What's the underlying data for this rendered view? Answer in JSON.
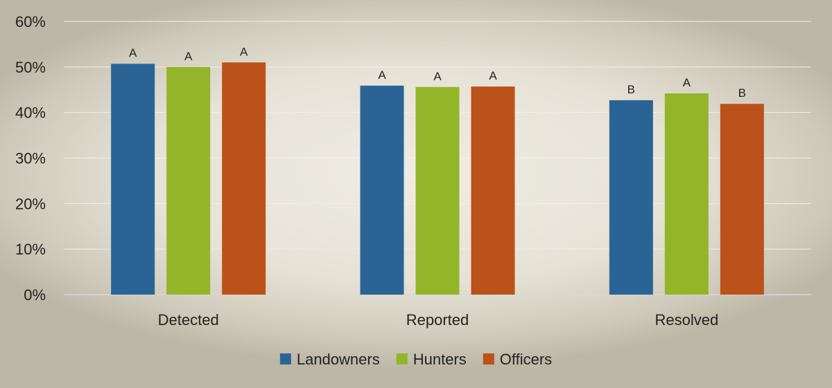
{
  "chart_data": {
    "type": "bar",
    "categories": [
      "Detected",
      "Reported",
      "Resolved"
    ],
    "series": [
      {
        "name": "Landowners",
        "color": "#2a6496",
        "values": [
          50.7,
          45.9,
          42.7
        ],
        "labels": [
          "A",
          "A",
          "B"
        ]
      },
      {
        "name": "Hunters",
        "color": "#93b52a",
        "values": [
          50.0,
          45.6,
          44.2
        ],
        "labels": [
          "A",
          "A",
          "A"
        ]
      },
      {
        "name": "Officers",
        "color": "#bb5219",
        "values": [
          51.0,
          45.7,
          41.9
        ],
        "labels": [
          "A",
          "A",
          "B"
        ]
      }
    ],
    "ylim": [
      0,
      60
    ],
    "yticks": [
      0,
      10,
      20,
      30,
      40,
      50,
      60
    ],
    "ytick_labels": [
      "0%",
      "10%",
      "20%",
      "30%",
      "40%",
      "50%",
      "60%"
    ],
    "grid": true,
    "legend": "bottom-center"
  }
}
